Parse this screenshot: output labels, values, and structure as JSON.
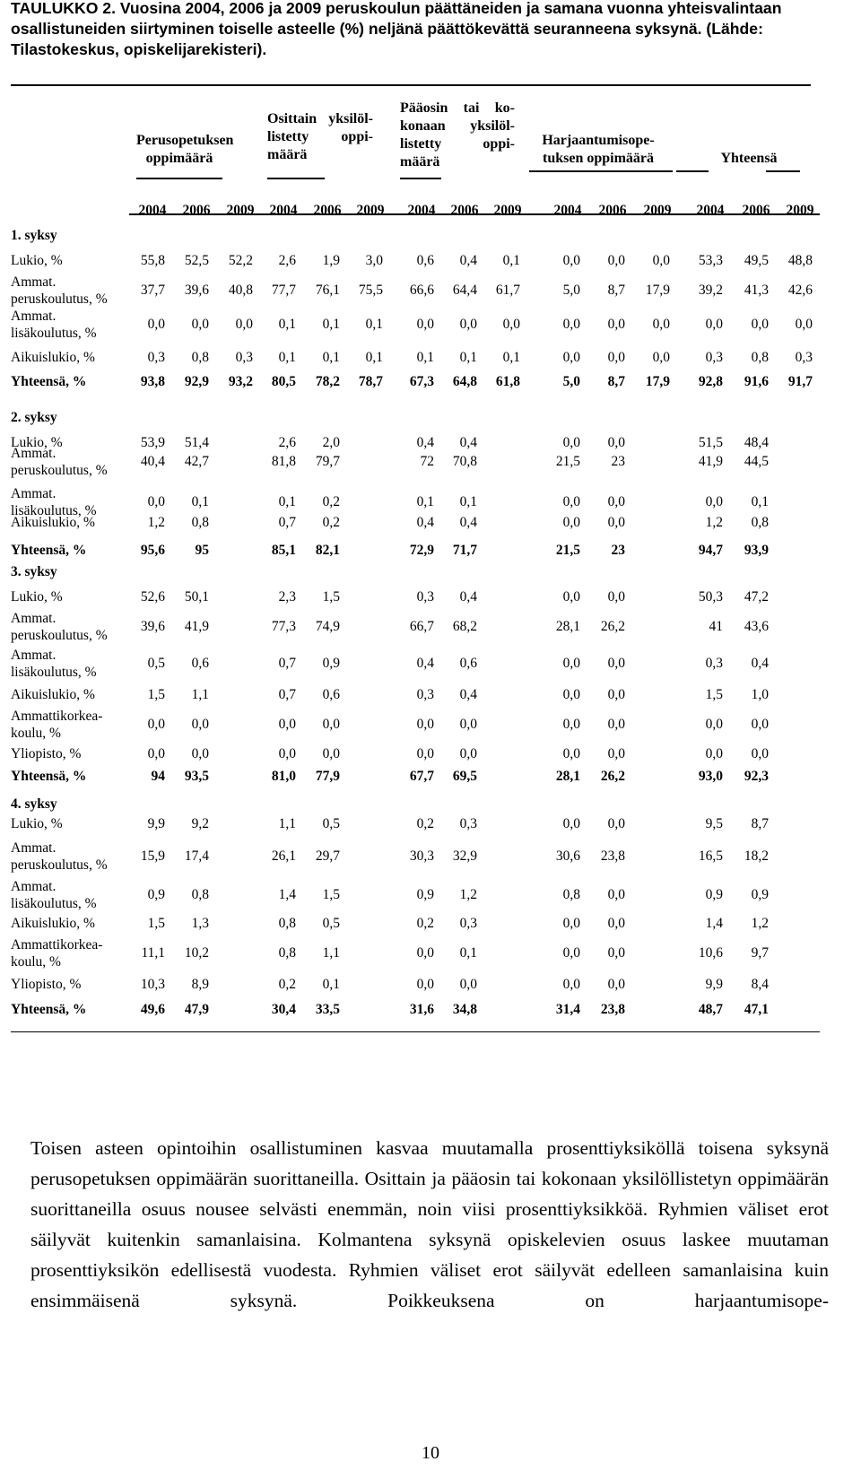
{
  "caption": "TAULUKKO 2. Vuosina 2004, 2006 ja 2009 peruskoulun päättäneiden ja samana vuonna yhteisvalintaan osallistuneiden siirtyminen toiselle asteelle (%) neljänä päättökevättä seuranneena syksynä. (Lähde: Tilastokeskus, opiskelijarekisteri).",
  "groups": [
    {
      "lines": [
        "Perusopetuksen",
        "oppimäärä"
      ]
    },
    {
      "lines": [
        "Osittain yksilöl-",
        "listetty oppi-",
        "määrä"
      ]
    },
    {
      "lines": [
        "Pääosin tai ko-",
        "konaan yksilöl-",
        "listetty oppi-",
        "määrä"
      ]
    },
    {
      "lines": [
        "Harjaantumisope-",
        "tuksen oppimäärä"
      ]
    },
    {
      "lines": [
        "Yhteensä"
      ]
    }
  ],
  "years": [
    "2004",
    "2006",
    "2009",
    "2004",
    "2006",
    "2009",
    "2004",
    "2006",
    "2009",
    "2004",
    "2006",
    "2009",
    "2004",
    "2006",
    "2009"
  ],
  "sections": [
    {
      "title": "1. syksy",
      "rows": [
        {
          "label": [
            "Lukio, %"
          ],
          "bold": false,
          "values": [
            "55,8",
            "52,5",
            "52,2",
            "2,6",
            "1,9",
            "3,0",
            "0,6",
            "0,4",
            "0,1",
            "0,0",
            "0,0",
            "0,0",
            "53,3",
            "49,5",
            "48,8"
          ]
        },
        {
          "label": [
            "Ammat.",
            "peruskoulutus, %"
          ],
          "bold": false,
          "values": [
            "37,7",
            "39,6",
            "40,8",
            "77,7",
            "76,1",
            "75,5",
            "66,6",
            "64,4",
            "61,7",
            "5,0",
            "8,7",
            "17,9",
            "39,2",
            "41,3",
            "42,6"
          ]
        },
        {
          "label": [
            "Ammat.",
            "lisäkoulutus, %"
          ],
          "bold": false,
          "values": [
            "0,0",
            "0,0",
            "0,0",
            "0,1",
            "0,1",
            "0,1",
            "0,0",
            "0,0",
            "0,0",
            "0,0",
            "0,0",
            "0,0",
            "0,0",
            "0,0",
            "0,0"
          ]
        },
        {
          "label": [
            "Aikuislukio, %"
          ],
          "bold": false,
          "values": [
            "0,3",
            "0,8",
            "0,3",
            "0,1",
            "0,1",
            "0,1",
            "0,1",
            "0,1",
            "0,1",
            "0,0",
            "0,0",
            "0,0",
            "0,3",
            "0,8",
            "0,3"
          ]
        },
        {
          "label": [
            "Yhteensä, %"
          ],
          "bold": true,
          "values": [
            "93,8",
            "92,9",
            "93,2",
            "80,5",
            "78,2",
            "78,7",
            "67,3",
            "64,8",
            "61,8",
            "5,0",
            "8,7",
            "17,9",
            "92,8",
            "91,6",
            "91,7"
          ]
        }
      ]
    },
    {
      "title": "2. syksy",
      "rows": [
        {
          "label": [
            "Lukio, %"
          ],
          "bold": false,
          "values": [
            "53,9",
            "51,4",
            "",
            "2,6",
            "2,0",
            "",
            "0,4",
            "0,4",
            "",
            "0,0",
            "0,0",
            "",
            "51,5",
            "48,4",
            ""
          ]
        },
        {
          "label": [
            "Ammat.",
            "peruskoulutus, %"
          ],
          "bold": false,
          "values": [
            "40,4",
            "42,7",
            "",
            "81,8",
            "79,7",
            "",
            "72",
            "70,8",
            "",
            "21,5",
            "23",
            "",
            "41,9",
            "44,5",
            ""
          ]
        },
        {
          "label": [
            "Ammat.",
            "lisäkoulutus, %"
          ],
          "bold": false,
          "values": [
            "0,0",
            "0,1",
            "",
            "0,1",
            "0,2",
            "",
            "0,1",
            "0,1",
            "",
            "0,0",
            "0,0",
            "",
            "0,0",
            "0,1",
            ""
          ]
        },
        {
          "label": [
            "Aikuislukio, %"
          ],
          "bold": false,
          "values": [
            "1,2",
            "0,8",
            "",
            "0,7",
            "0,2",
            "",
            "0,4",
            "0,4",
            "",
            "0,0",
            "0,0",
            "",
            "1,2",
            "0,8",
            ""
          ]
        },
        {
          "label": [
            "Yhteensä, %"
          ],
          "bold": true,
          "values": [
            "95,6",
            "95",
            "",
            "85,1",
            "82,1",
            "",
            "72,9",
            "71,7",
            "",
            "21,5",
            "23",
            "",
            "94,7",
            "93,9",
            ""
          ]
        }
      ]
    },
    {
      "title": "3. syksy",
      "rows": [
        {
          "label": [
            "Lukio, %"
          ],
          "bold": false,
          "values": [
            "52,6",
            "50,1",
            "",
            "2,3",
            "1,5",
            "",
            "0,3",
            "0,4",
            "",
            "0,0",
            "0,0",
            "",
            "50,3",
            "47,2",
            ""
          ]
        },
        {
          "label": [
            "Ammat.",
            "peruskoulutus, %"
          ],
          "bold": false,
          "values": [
            "39,6",
            "41,9",
            "",
            "77,3",
            "74,9",
            "",
            "66,7",
            "68,2",
            "",
            "28,1",
            "26,2",
            "",
            "41",
            "43,6",
            ""
          ]
        },
        {
          "label": [
            "Ammat.",
            "lisäkoulutus, %"
          ],
          "bold": false,
          "values": [
            "0,5",
            "0,6",
            "",
            "0,7",
            "0,9",
            "",
            "0,4",
            "0,6",
            "",
            "0,0",
            "0,0",
            "",
            "0,3",
            "0,4",
            ""
          ]
        },
        {
          "label": [
            "Aikuislukio, %"
          ],
          "bold": false,
          "values": [
            "1,5",
            "1,1",
            "",
            "0,7",
            "0,6",
            "",
            "0,3",
            "0,4",
            "",
            "0,0",
            "0,0",
            "",
            "1,5",
            "1,0",
            ""
          ]
        },
        {
          "label": [
            "Ammattikorkea-",
            "koulu, %"
          ],
          "bold": false,
          "values": [
            "0,0",
            "0,0",
            "",
            "0,0",
            "0,0",
            "",
            "0,0",
            "0,0",
            "",
            "0,0",
            "0,0",
            "",
            "0,0",
            "0,0",
            ""
          ]
        },
        {
          "label": [
            "Yliopisto, %"
          ],
          "bold": false,
          "values": [
            "0,0",
            "0,0",
            "",
            "0,0",
            "0,0",
            "",
            "0,0",
            "0,0",
            "",
            "0,0",
            "0,0",
            "",
            "0,0",
            "0,0",
            ""
          ]
        },
        {
          "label": [
            "Yhteensä, %"
          ],
          "bold": true,
          "values": [
            "94",
            "93,5",
            "",
            "81,0",
            "77,9",
            "",
            "67,7",
            "69,5",
            "",
            "28,1",
            "26,2",
            "",
            "93,0",
            "92,3",
            ""
          ]
        }
      ]
    },
    {
      "title": "4. syksy",
      "rows": [
        {
          "label": [
            "Lukio, %"
          ],
          "bold": false,
          "values": [
            "9,9",
            "9,2",
            "",
            "1,1",
            "0,5",
            "",
            "0,2",
            "0,3",
            "",
            "0,0",
            "0,0",
            "",
            "9,5",
            "8,7",
            ""
          ]
        },
        {
          "label": [
            "Ammat.",
            "peruskoulutus, %"
          ],
          "bold": false,
          "values": [
            "15,9",
            "17,4",
            "",
            "26,1",
            "29,7",
            "",
            "30,3",
            "32,9",
            "",
            "30,6",
            "23,8",
            "",
            "16,5",
            "18,2",
            ""
          ]
        },
        {
          "label": [
            "Ammat.",
            "lisäkoulutus, %"
          ],
          "bold": false,
          "values": [
            "0,9",
            "0,8",
            "",
            "1,4",
            "1,5",
            "",
            "0,9",
            "1,2",
            "",
            "0,8",
            "0,0",
            "",
            "0,9",
            "0,9",
            ""
          ]
        },
        {
          "label": [
            "Aikuislukio, %"
          ],
          "bold": false,
          "values": [
            "1,5",
            "1,3",
            "",
            "0,8",
            "0,5",
            "",
            "0,2",
            "0,3",
            "",
            "0,0",
            "0,0",
            "",
            "1,4",
            "1,2",
            ""
          ]
        },
        {
          "label": [
            "Ammattikorkea-",
            "koulu, %"
          ],
          "bold": false,
          "values": [
            "11,1",
            "10,2",
            "",
            "0,8",
            "1,1",
            "",
            "0,0",
            "0,1",
            "",
            "0,0",
            "0,0",
            "",
            "10,6",
            "9,7",
            ""
          ]
        },
        {
          "label": [
            "Yliopisto, %"
          ],
          "bold": false,
          "values": [
            "10,3",
            "8,9",
            "",
            "0,2",
            "0,1",
            "",
            "0,0",
            "0,0",
            "",
            "0,0",
            "0,0",
            "",
            "9,9",
            "8,4",
            ""
          ]
        },
        {
          "label": [
            "Yhteensä, %"
          ],
          "bold": true,
          "values": [
            "49,6",
            "47,9",
            "",
            "30,4",
            "33,5",
            "",
            "31,6",
            "34,8",
            "",
            "31,4",
            "23,8",
            "",
            "48,7",
            "47,1",
            ""
          ]
        }
      ]
    }
  ],
  "paragraph": "Toisen asteen opintoihin osallistuminen kasvaa muutamalla prosenttiyksiköllä toisena syksynä perusopetuksen oppimäärän suorittaneilla. Osittain ja pääosin tai kokonaan yksilöllistetyn oppimäärän suorittaneilla osuus nousee selvästi enemmän, noin viisi prosenttiyksikköä. Ryhmien väliset erot säilyvät kuitenkin samanlaisina. Kolmantena syksynä opiskelevien osuus laskee muutaman prosenttiyksikön edellisestä vuodesta. Ryhmien väliset erot säilyvät edelleen samanlaisina kuin ensimmäisenä syksynä. Poikkeuksena on harjaantumisope-",
  "page_number": "10"
}
